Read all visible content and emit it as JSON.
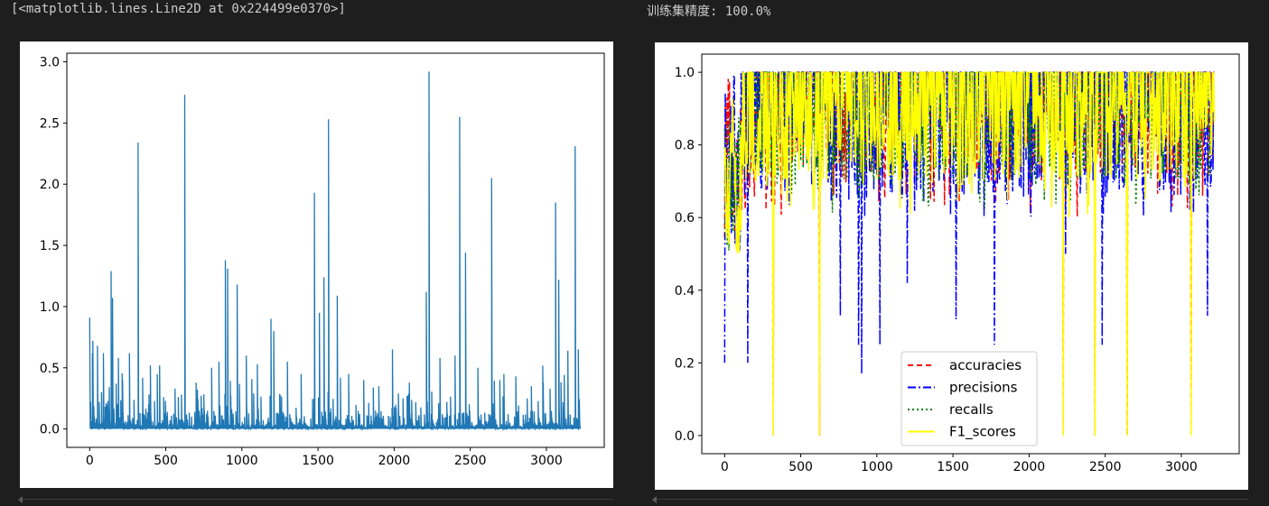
{
  "outputs": {
    "left_text": "[<matplotlib.lines.Line2D at 0x224499e0370>]",
    "right_text": "训练集精度: 100.0%"
  },
  "chart_data": [
    {
      "type": "line",
      "title": "",
      "xlabel": "",
      "ylabel": "",
      "xlim": [
        -150,
        3380
      ],
      "ylim": [
        -0.15,
        3.07
      ],
      "x_ticks": [
        0,
        500,
        1000,
        1500,
        2000,
        2500,
        3000
      ],
      "y_ticks": [
        0.0,
        0.5,
        1.0,
        1.5,
        2.0,
        2.5,
        3.0
      ],
      "x_tick_labels": [
        "0",
        "500",
        "1000",
        "1500",
        "2000",
        "2500",
        "3000"
      ],
      "y_tick_labels": [
        "0.0",
        "0.5",
        "1.0",
        "1.5",
        "2.0",
        "2.5",
        "3.0"
      ],
      "grid": false,
      "series_color": "#1f77b4",
      "n_points": 3220,
      "baseline_level": 0.05,
      "spikes": [
        {
          "x": 0,
          "y": 0.91
        },
        {
          "x": 20,
          "y": 0.72
        },
        {
          "x": 50,
          "y": 0.68
        },
        {
          "x": 90,
          "y": 0.62
        },
        {
          "x": 140,
          "y": 1.29
        },
        {
          "x": 150,
          "y": 1.07
        },
        {
          "x": 190,
          "y": 0.58
        },
        {
          "x": 260,
          "y": 0.62
        },
        {
          "x": 318,
          "y": 2.34
        },
        {
          "x": 400,
          "y": 0.52
        },
        {
          "x": 460,
          "y": 0.52
        },
        {
          "x": 560,
          "y": 0.33
        },
        {
          "x": 623,
          "y": 2.73
        },
        {
          "x": 700,
          "y": 0.38
        },
        {
          "x": 800,
          "y": 0.5
        },
        {
          "x": 850,
          "y": 0.55
        },
        {
          "x": 890,
          "y": 1.38
        },
        {
          "x": 905,
          "y": 1.31
        },
        {
          "x": 970,
          "y": 1.18
        },
        {
          "x": 1030,
          "y": 0.6
        },
        {
          "x": 1100,
          "y": 0.53
        },
        {
          "x": 1190,
          "y": 0.9
        },
        {
          "x": 1210,
          "y": 0.8
        },
        {
          "x": 1300,
          "y": 0.55
        },
        {
          "x": 1390,
          "y": 0.45
        },
        {
          "x": 1475,
          "y": 1.93
        },
        {
          "x": 1510,
          "y": 0.95
        },
        {
          "x": 1540,
          "y": 1.24
        },
        {
          "x": 1570,
          "y": 2.53
        },
        {
          "x": 1625,
          "y": 1.09
        },
        {
          "x": 1700,
          "y": 0.45
        },
        {
          "x": 1800,
          "y": 0.4
        },
        {
          "x": 1900,
          "y": 0.35
        },
        {
          "x": 1990,
          "y": 0.65
        },
        {
          "x": 2100,
          "y": 0.38
        },
        {
          "x": 2210,
          "y": 1.12
        },
        {
          "x": 2230,
          "y": 2.92
        },
        {
          "x": 2300,
          "y": 0.58
        },
        {
          "x": 2400,
          "y": 0.6
        },
        {
          "x": 2430,
          "y": 2.55
        },
        {
          "x": 2470,
          "y": 1.44
        },
        {
          "x": 2550,
          "y": 0.5
        },
        {
          "x": 2640,
          "y": 2.05
        },
        {
          "x": 2720,
          "y": 0.45
        },
        {
          "x": 2800,
          "y": 0.43
        },
        {
          "x": 2900,
          "y": 0.35
        },
        {
          "x": 2980,
          "y": 0.38
        },
        {
          "x": 3060,
          "y": 1.85
        },
        {
          "x": 3080,
          "y": 1.22
        },
        {
          "x": 3140,
          "y": 0.64
        },
        {
          "x": 3190,
          "y": 2.31
        },
        {
          "x": 3210,
          "y": 0.65
        }
      ]
    },
    {
      "type": "line",
      "title": "",
      "xlabel": "",
      "ylabel": "",
      "xlim": [
        -150,
        3380
      ],
      "ylim": [
        -0.05,
        1.05
      ],
      "x_ticks": [
        0,
        500,
        1000,
        1500,
        2000,
        2500,
        3000
      ],
      "y_ticks": [
        0.0,
        0.2,
        0.4,
        0.6,
        0.8,
        1.0
      ],
      "x_tick_labels": [
        "0",
        "500",
        "1000",
        "1500",
        "2000",
        "2500",
        "3000"
      ],
      "y_tick_labels": [
        "0.0",
        "0.2",
        "0.4",
        "0.6",
        "0.8",
        "1.0"
      ],
      "grid": false,
      "legend_position": "lower-center",
      "n_points": 3220,
      "series": [
        {
          "name": "accuracies",
          "color": "#ff0000",
          "dash": "6,4",
          "level_high": 1.0,
          "level_low": 0.8
        },
        {
          "name": "precisions",
          "color": "#0000ff",
          "dash": "9,3,2,3",
          "level_high": 1.0,
          "level_low": 0.75
        },
        {
          "name": "recalls",
          "color": "#008000",
          "dash": "2,3",
          "level_high": 1.0,
          "level_low": 0.8
        },
        {
          "name": "F1_scores",
          "color": "#ffff00",
          "dash": "",
          "level_high": 1.0,
          "level_low": 0.8
        }
      ],
      "zero_drops": [
        318,
        623,
        2225,
        2430,
        2645,
        3065
      ],
      "deep_drops": [
        {
          "x": 0,
          "y": 0.2
        },
        {
          "x": 150,
          "y": 0.2
        },
        {
          "x": 760,
          "y": 0.33
        },
        {
          "x": 880,
          "y": 0.25
        },
        {
          "x": 900,
          "y": 0.17
        },
        {
          "x": 1020,
          "y": 0.25
        },
        {
          "x": 1200,
          "y": 0.42
        },
        {
          "x": 1520,
          "y": 0.32
        },
        {
          "x": 1770,
          "y": 0.25
        },
        {
          "x": 2240,
          "y": 0.5
        },
        {
          "x": 2480,
          "y": 0.25
        },
        {
          "x": 3170,
          "y": 0.33
        }
      ]
    }
  ]
}
